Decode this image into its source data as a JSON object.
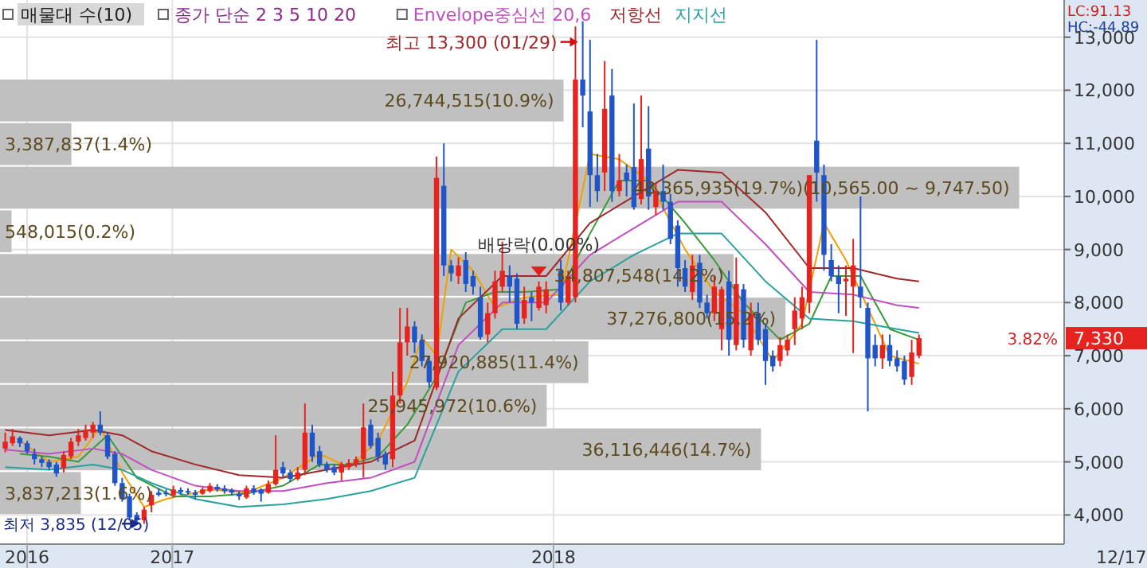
{
  "chart_data": [
    {
      "type": "candlestick",
      "x": [
        "2016-07-25",
        "2016-08-01",
        "2016-08-08",
        "2016-08-15",
        "2016-08-22",
        "2016-08-29",
        "2016-09-05",
        "2016-09-12",
        "2016-09-19",
        "2016-09-26",
        "2016-10-03",
        "2016-10-10",
        "2016-10-17",
        "2016-10-24",
        "2016-10-31",
        "2016-11-07",
        "2016-11-14",
        "2016-11-21",
        "2016-11-28",
        "2016-12-05",
        "2016-12-12",
        "2016-12-19",
        "2016-12-26",
        "2017-01-02",
        "2017-01-09",
        "2017-01-16",
        "2017-01-23",
        "2017-01-30",
        "2017-02-06",
        "2017-02-13",
        "2017-02-20",
        "2017-02-27",
        "2017-03-06",
        "2017-03-13",
        "2017-03-20",
        "2017-03-27",
        "2017-04-03",
        "2017-04-10",
        "2017-04-17",
        "2017-04-24",
        "2017-05-01",
        "2017-05-08",
        "2017-05-15",
        "2017-05-22",
        "2017-05-29",
        "2017-06-05",
        "2017-06-12",
        "2017-06-19",
        "2017-06-26",
        "2017-07-03",
        "2017-07-10",
        "2017-07-17",
        "2017-07-24",
        "2017-07-31",
        "2017-08-07",
        "2017-08-14",
        "2017-08-21",
        "2017-08-28",
        "2017-09-04",
        "2017-09-11",
        "2017-09-18",
        "2017-09-25",
        "2017-10-02",
        "2017-10-09",
        "2017-10-16",
        "2017-10-23",
        "2017-10-30",
        "2017-11-06",
        "2017-11-13",
        "2017-11-20",
        "2017-11-27",
        "2017-12-04",
        "2017-12-11",
        "2017-12-18",
        "2017-12-25",
        "2018-01-08",
        "2018-01-15",
        "2018-01-22",
        "2018-01-29",
        "2018-02-05",
        "2018-02-12",
        "2018-02-19",
        "2018-02-26",
        "2018-03-05",
        "2018-03-12",
        "2018-03-19",
        "2018-03-26",
        "2018-04-02",
        "2018-04-09",
        "2018-04-16",
        "2018-04-23",
        "2018-04-30",
        "2018-05-07",
        "2018-05-14",
        "2018-05-21",
        "2018-05-28",
        "2018-06-04",
        "2018-06-11",
        "2018-06-18",
        "2018-06-25",
        "2018-07-02",
        "2018-07-09",
        "2018-07-16",
        "2018-07-23",
        "2018-07-30",
        "2018-08-06",
        "2018-08-13",
        "2018-08-20",
        "2018-08-27",
        "2018-09-03",
        "2018-09-10",
        "2018-09-17",
        "2018-09-24",
        "2018-10-01",
        "2018-10-08",
        "2018-10-15",
        "2018-10-22",
        "2018-10-29",
        "2018-11-05",
        "2018-11-12",
        "2018-11-19",
        "2018-11-26",
        "2018-12-03",
        "2018-12-10",
        "2018-12-17"
      ],
      "ohlc": [
        [
          5250,
          5550,
          5180,
          5380
        ],
        [
          5350,
          5620,
          5300,
          5480
        ],
        [
          5450,
          5480,
          5280,
          5350
        ],
        [
          5350,
          5400,
          5150,
          5200
        ],
        [
          5150,
          5250,
          4950,
          5050
        ],
        [
          5050,
          5100,
          4900,
          4980
        ],
        [
          5000,
          5050,
          4850,
          4900
        ],
        [
          4950,
          5000,
          4720,
          4780
        ],
        [
          4880,
          5200,
          4800,
          5130
        ],
        [
          5100,
          5450,
          5050,
          5380
        ],
        [
          5380,
          5620,
          5300,
          5500
        ],
        [
          5450,
          5700,
          5400,
          5600
        ],
        [
          5550,
          5750,
          5450,
          5700
        ],
        [
          5700,
          5950,
          5500,
          5550
        ],
        [
          5500,
          5550,
          5050,
          5100
        ],
        [
          5150,
          5200,
          4550,
          4600
        ],
        [
          4600,
          4700,
          4250,
          4300
        ],
        [
          4350,
          4400,
          3900,
          3950
        ],
        [
          4000,
          4050,
          3850,
          3900
        ],
        [
          3900,
          4150,
          3835,
          4100
        ],
        [
          4180,
          4450,
          4050,
          4380
        ],
        [
          4420,
          4500,
          4350,
          4380
        ],
        [
          4420,
          4480,
          4350,
          4400
        ],
        [
          4370,
          4550,
          4330,
          4480
        ],
        [
          4470,
          4520,
          4380,
          4430
        ],
        [
          4450,
          4500,
          4380,
          4420
        ],
        [
          4420,
          4470,
          4300,
          4380
        ],
        [
          4400,
          4520,
          4380,
          4480
        ],
        [
          4450,
          4600,
          4420,
          4550
        ],
        [
          4530,
          4580,
          4440,
          4480
        ],
        [
          4500,
          4560,
          4400,
          4450
        ],
        [
          4470,
          4500,
          4370,
          4420
        ],
        [
          4400,
          4450,
          4280,
          4350
        ],
        [
          4330,
          4550,
          4300,
          4500
        ],
        [
          4500,
          4560,
          4380,
          4420
        ],
        [
          4480,
          4500,
          4250,
          4400
        ],
        [
          4420,
          4650,
          4400,
          4580
        ],
        [
          4580,
          5500,
          4550,
          4850
        ],
        [
          4900,
          5000,
          4700,
          4780
        ],
        [
          4800,
          4850,
          4620,
          4680
        ],
        [
          4680,
          4900,
          4650,
          4800
        ],
        [
          4850,
          6100,
          4750,
          5550
        ],
        [
          5550,
          5700,
          5000,
          5100
        ],
        [
          5200,
          5300,
          4900,
          4950
        ],
        [
          4950,
          5000,
          4800,
          4850
        ],
        [
          4900,
          4950,
          4750,
          4800
        ],
        [
          4800,
          5000,
          4650,
          4950
        ],
        [
          4900,
          5050,
          4850,
          4980
        ],
        [
          4950,
          5100,
          4900,
          5050
        ],
        [
          5050,
          6100,
          4700,
          5650
        ],
        [
          5700,
          5800,
          5250,
          5300
        ],
        [
          5450,
          5550,
          5000,
          5100
        ],
        [
          5150,
          5200,
          4850,
          4950
        ],
        [
          5050,
          6700,
          4900,
          6250
        ],
        [
          6250,
          7900,
          6100,
          7250
        ],
        [
          7250,
          7900,
          7000,
          7550
        ],
        [
          7550,
          7650,
          7050,
          7250
        ],
        [
          7300,
          7400,
          6800,
          6900
        ],
        [
          6900,
          7000,
          6400,
          6500
        ],
        [
          6400,
          10750,
          6350,
          10350
        ],
        [
          10200,
          11000,
          8500,
          8700
        ],
        [
          8700,
          8800,
          8400,
          8550
        ],
        [
          8500,
          8850,
          8350,
          8700
        ],
        [
          8800,
          8950,
          8200,
          8350
        ],
        [
          8500,
          8600,
          8150,
          8300
        ],
        [
          8100,
          8300,
          7300,
          7350
        ],
        [
          7400,
          8000,
          7250,
          7800
        ],
        [
          7800,
          8600,
          7700,
          8400
        ],
        [
          8300,
          9150,
          8200,
          8600
        ],
        [
          8500,
          8700,
          8000,
          8300
        ],
        [
          8450,
          8550,
          7500,
          7600
        ],
        [
          7700,
          8300,
          7600,
          8050
        ],
        [
          8100,
          8200,
          7650,
          8000
        ],
        [
          7900,
          8400,
          7850,
          8300
        ],
        [
          7950,
          8400,
          7800,
          8250
        ],
        [
          8600,
          8800,
          7850,
          8000
        ],
        [
          8000,
          8600,
          7950,
          8500
        ],
        [
          8100,
          13200,
          8000,
          12200
        ],
        [
          12200,
          13300,
          11300,
          11900
        ],
        [
          11600,
          12950,
          9800,
          10400
        ],
        [
          10400,
          10800,
          9900,
          10100
        ],
        [
          10450,
          12550,
          10100,
          11650
        ],
        [
          11900,
          12400,
          9900,
          10100
        ],
        [
          10100,
          10800,
          10000,
          10300
        ],
        [
          10450,
          10600,
          10000,
          10300
        ],
        [
          10550,
          11750,
          9750,
          9800
        ],
        [
          9950,
          11900,
          9850,
          10700
        ],
        [
          10900,
          11700,
          9750,
          10000
        ],
        [
          9800,
          10250,
          9650,
          10100
        ],
        [
          10100,
          10600,
          9750,
          9900
        ],
        [
          9900,
          10050,
          9100,
          9200
        ],
        [
          9450,
          9550,
          8300,
          8650
        ],
        [
          8650,
          8800,
          8200,
          8300
        ],
        [
          8200,
          8900,
          8050,
          8700
        ],
        [
          8750,
          8900,
          7900,
          8000
        ],
        [
          8000,
          8150,
          7700,
          7800
        ],
        [
          7800,
          8500,
          7650,
          8300
        ],
        [
          7500,
          8300,
          7100,
          8250
        ],
        [
          8400,
          8600,
          7000,
          7300
        ],
        [
          7200,
          8850,
          7100,
          8350
        ],
        [
          8250,
          8350,
          7150,
          7300
        ],
        [
          7100,
          8000,
          7000,
          7800
        ],
        [
          7800,
          8000,
          7200,
          7300
        ],
        [
          7500,
          7600,
          6450,
          6900
        ],
        [
          7000,
          7100,
          6700,
          6800
        ],
        [
          6900,
          7350,
          6800,
          7200
        ],
        [
          7100,
          7400,
          7000,
          7300
        ],
        [
          7500,
          8100,
          7200,
          7850
        ],
        [
          7700,
          8300,
          7500,
          8100
        ],
        [
          8000,
          10400,
          7800,
          10400
        ],
        [
          11050,
          12950,
          9900,
          10450
        ],
        [
          10400,
          10600,
          8600,
          8900
        ],
        [
          8800,
          9100,
          8400,
          8500
        ],
        [
          8500,
          8700,
          7800,
          8350
        ],
        [
          8400,
          8700,
          7750,
          8450
        ],
        [
          8300,
          9200,
          7050,
          8700
        ],
        [
          8300,
          10000,
          7900,
          8100
        ],
        [
          7900,
          8000,
          5950,
          6950
        ],
        [
          7200,
          7400,
          6800,
          6950
        ],
        [
          6950,
          7400,
          6750,
          7200
        ],
        [
          7200,
          7400,
          6800,
          6900
        ],
        [
          6950,
          7100,
          6700,
          6800
        ],
        [
          6900,
          7000,
          6450,
          6550
        ],
        [
          6600,
          7300,
          6450,
          7060
        ],
        [
          7000,
          7400,
          6950,
          7330
        ]
      ],
      "xlim": [
        "2016-07-20",
        "2019-05-05"
      ],
      "xticks": [
        {
          "value": "2016-08-15",
          "label": "2016"
        },
        {
          "value": "2017-01-01",
          "label": "2017"
        },
        {
          "value": "2018-01-01",
          "label": "2018"
        }
      ],
      "ylim": [
        3450,
        13700
      ],
      "yticks": [
        {
          "value": 4000,
          "label": "4,000"
        },
        {
          "value": 5000,
          "label": "5,000"
        },
        {
          "value": 6000,
          "label": "6,000"
        },
        {
          "value": 7000,
          "label": "7,000"
        },
        {
          "value": 8000,
          "label": "8,000"
        },
        {
          "value": 9000,
          "label": "9,000"
        },
        {
          "value": 10000,
          "label": "10,000"
        },
        {
          "value": 11000,
          "label": "11,000"
        },
        {
          "value": 12000,
          "label": "12,000"
        },
        {
          "value": 13000,
          "label": "13,000"
        }
      ],
      "grid": true,
      "legend": "top left",
      "series": [
        {
          "type": "line",
          "color": "#f0a000",
          "x": [
            "2016-08-08",
            "2016-09-05",
            "2016-10-03",
            "2016-10-24",
            "2016-11-14",
            "2016-12-05",
            "2016-12-26",
            "2017-02-06",
            "2017-03-13",
            "2017-04-17",
            "2017-05-22",
            "2017-06-19",
            "2017-07-17",
            "2017-08-14",
            "2017-08-28",
            "2017-09-11",
            "2017-09-25",
            "2017-10-16",
            "2017-11-06",
            "2017-12-04",
            "2018-01-08",
            "2018-02-05",
            "2018-03-05",
            "2018-04-02",
            "2018-05-07",
            "2018-06-04",
            "2018-07-02",
            "2018-07-30",
            "2018-08-27",
            "2018-09-17",
            "2018-10-08",
            "2018-10-29",
            "2018-11-19",
            "2018-12-17"
          ],
          "values": [
            5400,
            5000,
            5100,
            5650,
            4800,
            4150,
            4300,
            4480,
            4420,
            4700,
            5150,
            4900,
            5400,
            6500,
            7350,
            7000,
            9000,
            8600,
            7900,
            8100,
            8150,
            10800,
            10700,
            10300,
            9000,
            8200,
            7800,
            6900,
            7600,
            9500,
            8800,
            7900,
            7000,
            6850
          ]
        },
        {
          "type": "line",
          "color": "#3a9a3a",
          "x": [
            "2016-08-08",
            "2016-09-05",
            "2016-10-03",
            "2016-10-31",
            "2016-11-28",
            "2017-01-02",
            "2017-02-06",
            "2017-03-13",
            "2017-04-17",
            "2017-05-22",
            "2017-06-19",
            "2017-07-17",
            "2017-08-14",
            "2017-09-11",
            "2017-10-09",
            "2017-11-06",
            "2017-12-04",
            "2018-01-08",
            "2018-02-05",
            "2018-03-05",
            "2018-04-02",
            "2018-05-07",
            "2018-06-04",
            "2018-07-02",
            "2018-08-06",
            "2018-09-03",
            "2018-09-24",
            "2018-10-22",
            "2018-11-19",
            "2018-12-17"
          ],
          "values": [
            5150,
            5100,
            5000,
            5500,
            4700,
            4350,
            4350,
            4400,
            4550,
            4950,
            4950,
            5100,
            5700,
            6600,
            8000,
            8200,
            8200,
            8250,
            9300,
            10300,
            10300,
            9500,
            8800,
            8000,
            7300,
            7600,
            8500,
            8500,
            7500,
            7300
          ]
        },
        {
          "type": "line",
          "name": "Envelope중심선 20,6",
          "color": "#c050c0",
          "x": [
            "2016-07-25",
            "2016-09-05",
            "2016-10-17",
            "2016-11-14",
            "2016-12-12",
            "2017-01-23",
            "2017-03-06",
            "2017-04-17",
            "2017-05-29",
            "2017-07-10",
            "2017-08-21",
            "2017-10-02",
            "2017-11-13",
            "2017-12-25",
            "2018-02-05",
            "2018-03-19",
            "2018-04-30",
            "2018-06-11",
            "2018-07-23",
            "2018-09-03",
            "2018-10-15",
            "2018-11-26",
            "2018-12-17"
          ],
          "values": [
            5230,
            5150,
            5250,
            5150,
            4850,
            4550,
            4450,
            4450,
            4600,
            4700,
            5000,
            7200,
            8000,
            8000,
            8900,
            9400,
            9900,
            9900,
            9100,
            8200,
            8150,
            7950,
            7900
          ]
        },
        {
          "type": "line",
          "name": "저항선",
          "color": "#a0282a",
          "x": [
            "2016-07-25",
            "2016-09-05",
            "2016-10-17",
            "2016-11-14",
            "2016-12-12",
            "2017-01-23",
            "2017-03-06",
            "2017-04-17",
            "2017-05-29",
            "2017-07-10",
            "2017-08-21",
            "2017-10-02",
            "2017-11-13",
            "2017-12-25",
            "2018-02-05",
            "2018-03-19",
            "2018-04-30",
            "2018-06-11",
            "2018-07-23",
            "2018-09-03",
            "2018-10-15",
            "2018-11-26",
            "2018-12-17"
          ],
          "values": [
            5600,
            5500,
            5600,
            5500,
            5200,
            4950,
            4750,
            4700,
            4850,
            5000,
            5400,
            7700,
            8500,
            8500,
            9500,
            10000,
            10500,
            10450,
            9700,
            8650,
            8650,
            8450,
            8400
          ]
        },
        {
          "type": "line",
          "name": "지지선",
          "color": "#2aa0a0",
          "x": [
            "2016-07-25",
            "2016-09-05",
            "2016-10-17",
            "2016-11-14",
            "2016-12-12",
            "2017-01-23",
            "2017-03-06",
            "2017-04-17",
            "2017-05-29",
            "2017-07-10",
            "2017-08-21",
            "2017-10-02",
            "2017-11-13",
            "2017-12-25",
            "2018-02-05",
            "2018-03-19",
            "2018-04-30",
            "2018-06-11",
            "2018-07-23",
            "2018-09-03",
            "2018-10-15",
            "2018-11-26",
            "2018-12-17"
          ],
          "values": [
            4900,
            4850,
            4950,
            4850,
            4600,
            4300,
            4150,
            4200,
            4300,
            4450,
            4700,
            6700,
            7500,
            7500,
            8400,
            8900,
            9300,
            9300,
            8400,
            7700,
            7650,
            7500,
            7430
          ]
        }
      ],
      "annotations": [
        "종가 단순 2 3 5 10 20",
        "최고 13,300 (01/29)",
        "최저 3,835 (12/05)",
        {
          "text": "배당락(0.00%)",
          "x": "2017-12-18",
          "y": 8500
        },
        "LC:91.13",
        "HC:-44.89",
        "7,330",
        "3.82%",
        "12/17"
      ]
    },
    {
      "type": "bar",
      "orientation": "horizontal",
      "title": "매물대 수(10)",
      "color": "#c0c0c0",
      "categories": [
        null,
        null,
        null,
        null,
        null,
        null,
        null,
        null,
        null,
        null
      ],
      "values": [
        26744515,
        3387837,
        48365935,
        548015,
        34807548,
        37276800,
        27920885,
        25945972,
        36116446,
        3837213
      ],
      "value_labels": [
        "26,744,515(10.9%)",
        "3,387,837(1.4%)",
        "48,365,935(19.7%)(10,565.00 ~ 9,747.50)",
        "548,015(0.2%)",
        "34,807,548(14.2%)",
        "37,276,800(15.2%)",
        "27,920,885(11.4%)",
        "25,945,972(10.6%)",
        "36,116,446(14.7%)",
        "3,837,213(1.6%)"
      ],
      "xlim": [
        0,
        50500000
      ],
      "tick_labels": false
    }
  ]
}
